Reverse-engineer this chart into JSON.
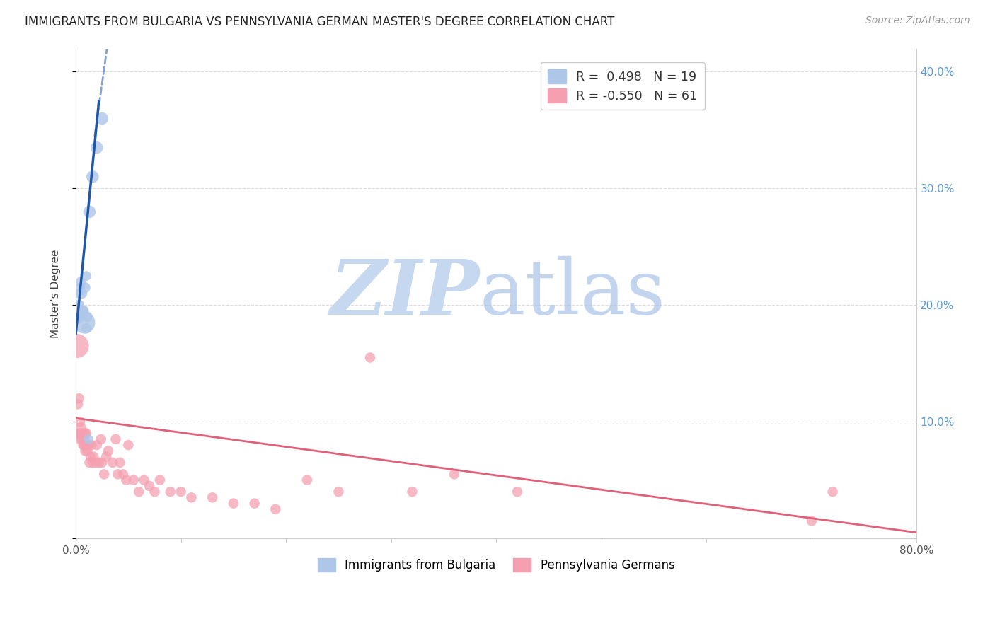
{
  "title": "IMMIGRANTS FROM BULGARIA VS PENNSYLVANIA GERMAN MASTER'S DEGREE CORRELATION CHART",
  "source": "Source: ZipAtlas.com",
  "ylabel": "Master's Degree",
  "xlim": [
    0.0,
    0.8
  ],
  "ylim": [
    0.0,
    0.42
  ],
  "blue_R": 0.498,
  "blue_N": 19,
  "pink_R": -0.55,
  "pink_N": 61,
  "blue_color": "#aec6e8",
  "blue_line_color": "#2057a7",
  "pink_color": "#f4a0b0",
  "pink_line_color": "#e0607a",
  "legend_blue_label": "R =  0.498   N = 19",
  "legend_pink_label": "R = -0.550   N = 61",
  "watermark_zip_color": "#c5d8f0",
  "watermark_atlas_color": "#aac4e8",
  "blue_dots_x": [
    0.001,
    0.003,
    0.003,
    0.004,
    0.005,
    0.005,
    0.006,
    0.007,
    0.007,
    0.008,
    0.009,
    0.01,
    0.01,
    0.011,
    0.012,
    0.013,
    0.016,
    0.02,
    0.025
  ],
  "blue_dots_y": [
    0.19,
    0.2,
    0.21,
    0.215,
    0.19,
    0.22,
    0.21,
    0.195,
    0.195,
    0.185,
    0.215,
    0.18,
    0.225,
    0.19,
    0.085,
    0.28,
    0.31,
    0.335,
    0.36
  ],
  "blue_dot_sizes": [
    200,
    120,
    100,
    100,
    110,
    110,
    110,
    120,
    130,
    500,
    110,
    110,
    100,
    110,
    100,
    160,
    160,
    160,
    160
  ],
  "pink_dots_x": [
    0.001,
    0.002,
    0.003,
    0.003,
    0.004,
    0.004,
    0.005,
    0.005,
    0.006,
    0.006,
    0.007,
    0.007,
    0.008,
    0.008,
    0.009,
    0.009,
    0.01,
    0.01,
    0.011,
    0.012,
    0.013,
    0.014,
    0.015,
    0.016,
    0.017,
    0.019,
    0.02,
    0.022,
    0.024,
    0.025,
    0.027,
    0.029,
    0.031,
    0.035,
    0.038,
    0.04,
    0.042,
    0.045,
    0.048,
    0.05,
    0.055,
    0.06,
    0.065,
    0.07,
    0.075,
    0.08,
    0.09,
    0.1,
    0.11,
    0.13,
    0.15,
    0.17,
    0.19,
    0.22,
    0.25,
    0.28,
    0.32,
    0.36,
    0.42,
    0.7,
    0.72
  ],
  "pink_dots_y": [
    0.165,
    0.115,
    0.12,
    0.09,
    0.085,
    0.1,
    0.09,
    0.095,
    0.085,
    0.09,
    0.08,
    0.09,
    0.08,
    0.085,
    0.075,
    0.09,
    0.08,
    0.09,
    0.075,
    0.08,
    0.065,
    0.07,
    0.08,
    0.065,
    0.07,
    0.065,
    0.08,
    0.065,
    0.085,
    0.065,
    0.055,
    0.07,
    0.075,
    0.065,
    0.085,
    0.055,
    0.065,
    0.055,
    0.05,
    0.08,
    0.05,
    0.04,
    0.05,
    0.045,
    0.04,
    0.05,
    0.04,
    0.04,
    0.035,
    0.035,
    0.03,
    0.03,
    0.025,
    0.05,
    0.04,
    0.155,
    0.04,
    0.055,
    0.04,
    0.015,
    0.04
  ],
  "pink_dot_sizes": [
    600,
    110,
    110,
    110,
    110,
    110,
    110,
    110,
    110,
    110,
    110,
    110,
    110,
    110,
    110,
    110,
    110,
    110,
    110,
    110,
    110,
    110,
    110,
    110,
    110,
    110,
    110,
    110,
    110,
    110,
    110,
    110,
    110,
    110,
    110,
    110,
    110,
    110,
    110,
    110,
    110,
    110,
    110,
    110,
    110,
    110,
    110,
    110,
    110,
    110,
    110,
    110,
    110,
    110,
    110,
    110,
    110,
    110,
    110,
    110,
    110
  ],
  "background_color": "#ffffff",
  "grid_color": "#dddddd"
}
